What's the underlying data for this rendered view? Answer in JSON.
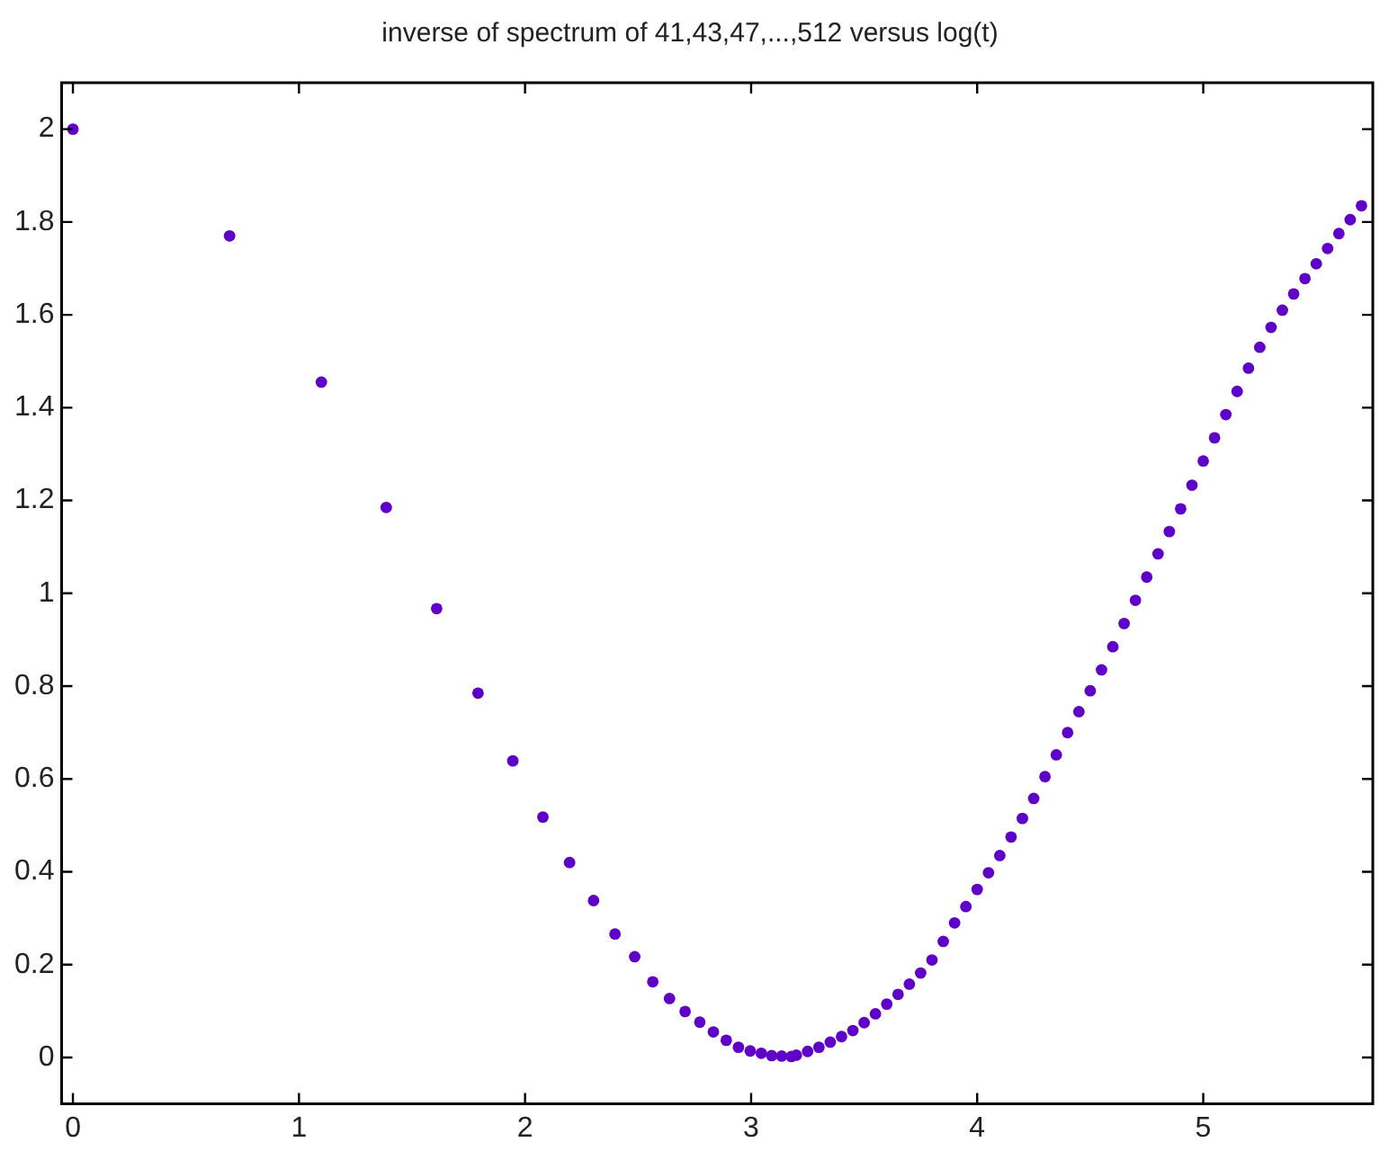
{
  "chart_data": {
    "type": "scatter",
    "title": "inverse of spectrum of 41,43,47,...,512 versus log(t)",
    "xlim": [
      -0.05,
      5.75
    ],
    "xticks": [
      0,
      1,
      2,
      3,
      4,
      5
    ],
    "ylim": [
      -0.1,
      2.1
    ],
    "yticks": [
      0,
      0.2,
      0.4,
      0.6,
      0.8,
      1,
      1.2,
      1.4,
      1.6,
      1.8,
      2
    ],
    "grid": false,
    "legend": false,
    "marker": "circle",
    "series": [
      {
        "color": "#5f00c8",
        "x": [
          0,
          0.693,
          1.099,
          1.386,
          1.609,
          1.792,
          1.946,
          2.079,
          2.197,
          2.303,
          2.398,
          2.485,
          2.565,
          2.639,
          2.708,
          2.773,
          2.833,
          2.89,
          2.944,
          2.996,
          3.045,
          3.091,
          3.135,
          3.178,
          3.2,
          3.25,
          3.3,
          3.35,
          3.4,
          3.45,
          3.5,
          3.55,
          3.6,
          3.65,
          3.7,
          3.75,
          3.8,
          3.85,
          3.9,
          3.95,
          4.0,
          4.05,
          4.1,
          4.15,
          4.2,
          4.25,
          4.3,
          4.35,
          4.4,
          4.45,
          4.5,
          4.55,
          4.6,
          4.65,
          4.7,
          4.75,
          4.8,
          4.85,
          4.9,
          4.95,
          5.0,
          5.05,
          5.1,
          5.15,
          5.2,
          5.25,
          5.3,
          5.35,
          5.4,
          5.45,
          5.5,
          5.55,
          5.6,
          5.65,
          5.7
        ],
        "values": [
          2,
          1.77,
          1.455,
          1.185,
          0.967,
          0.785,
          0.639,
          0.518,
          0.42,
          0.338,
          0.266,
          0.217,
          0.163,
          0.127,
          0.099,
          0.076,
          0.055,
          0.037,
          0.022,
          0.014,
          0.009,
          0.004,
          0.003,
          0.002,
          0.005,
          0.013,
          0.022,
          0.033,
          0.045,
          0.058,
          0.075,
          0.094,
          0.115,
          0.136,
          0.158,
          0.182,
          0.21,
          0.25,
          0.29,
          0.325,
          0.362,
          0.398,
          0.435,
          0.475,
          0.515,
          0.558,
          0.605,
          0.652,
          0.7,
          0.745,
          0.79,
          0.835,
          0.885,
          0.935,
          0.985,
          1.035,
          1.085,
          1.133,
          1.182,
          1.233,
          1.285,
          1.335,
          1.385,
          1.435,
          1.485,
          1.53,
          1.573,
          1.61,
          1.645,
          1.678,
          1.71,
          1.743,
          1.775,
          1.805,
          1.835
        ]
      }
    ]
  }
}
